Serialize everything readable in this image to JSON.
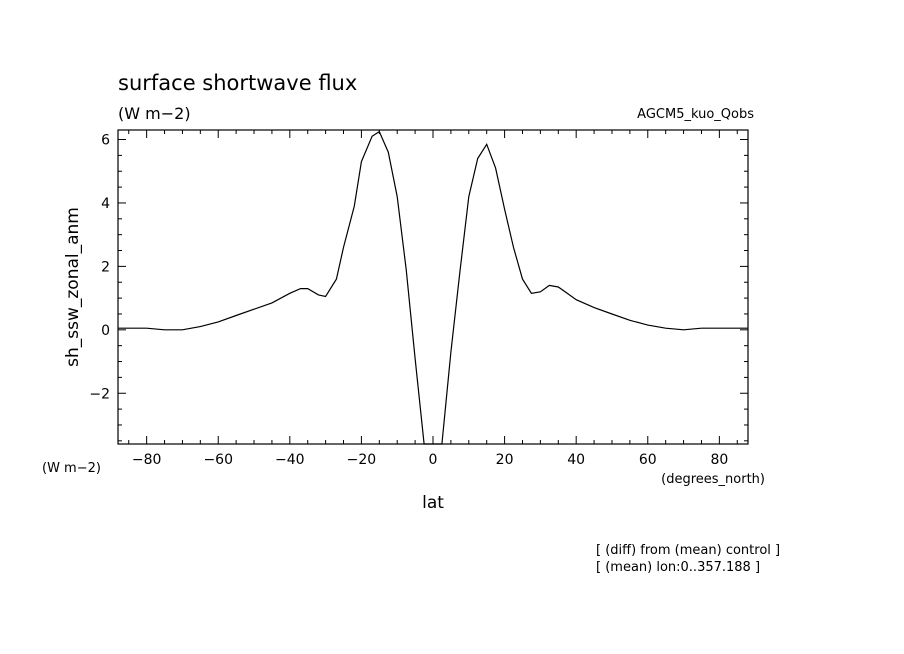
{
  "chart_data": {
    "type": "line",
    "title": "surface shortwave flux",
    "title_units": "(W m−2)",
    "experiment": "AGCM5_kuo_Qobs",
    "ylabel": "sh_ssw_zonal_anm",
    "ylabel_units": "(W m−2)",
    "xlabel": "lat",
    "xlabel_units": "(degrees_north)",
    "xlim": [
      -88,
      88
    ],
    "ylim": [
      -3.6,
      6.3
    ],
    "x_ticks": [
      -80,
      -60,
      -40,
      -20,
      0,
      20,
      40,
      60,
      80
    ],
    "x_tick_labels": [
      "−80",
      "−60",
      "−40",
      "−20",
      "0",
      "20",
      "40",
      "60",
      "80"
    ],
    "y_ticks": [
      -2,
      0,
      2,
      4,
      6
    ],
    "y_tick_labels": [
      "−2",
      "0",
      "2",
      "4",
      "6"
    ],
    "series": [
      {
        "x": [
          -88,
          -80,
          -75,
          -70,
          -65,
          -60,
          -55,
          -50,
          -45,
          -40,
          -37,
          -35,
          -32,
          -30,
          -27,
          -25,
          -22,
          -20,
          -17,
          -15,
          -12.5,
          -10,
          -7.5,
          -5,
          -2.5,
          -1,
          1,
          2.5,
          5,
          7.5,
          10,
          12.5,
          15,
          17.5,
          20,
          22.5,
          25,
          27.5,
          30,
          32.5,
          35,
          37.5,
          40,
          45,
          50,
          55,
          60,
          65,
          70,
          75,
          80,
          88
        ],
        "y": [
          0.05,
          0.05,
          0.0,
          0.0,
          0.1,
          0.25,
          0.45,
          0.65,
          0.85,
          1.15,
          1.3,
          1.3,
          1.1,
          1.05,
          1.6,
          2.6,
          3.9,
          5.3,
          6.1,
          6.25,
          5.6,
          4.2,
          1.9,
          -0.9,
          -3.6,
          -3.6,
          -3.6,
          -3.6,
          -0.7,
          1.8,
          4.2,
          5.4,
          5.85,
          5.1,
          3.8,
          2.6,
          1.6,
          1.15,
          1.2,
          1.4,
          1.35,
          1.15,
          0.95,
          0.7,
          0.5,
          0.3,
          0.15,
          0.05,
          0.0,
          0.05,
          0.05,
          0.05
        ]
      }
    ],
    "grid": false,
    "footnotes": [
      "[ (diff) from (mean) control ]",
      "[ (mean) lon:0..357.188 ]"
    ],
    "line_color": "#000000"
  }
}
